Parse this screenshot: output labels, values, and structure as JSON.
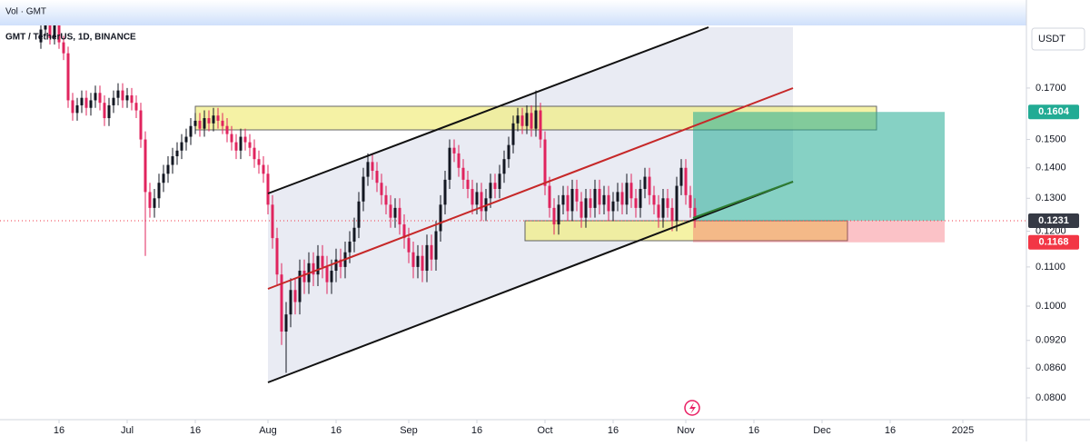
{
  "header": {
    "title": "Vol · GMT"
  },
  "chart_data": {
    "type": "candlestick",
    "title": "GMT / TetherUS, 1D, BINANCE",
    "currency": "USDT",
    "up_color": "#131722",
    "down_color": "#e0245e",
    "log_scale": true,
    "ylim": [
      0.0762,
      0.1971
    ],
    "yticks": [
      {
        "value": 0.08,
        "label": "0.0800"
      },
      {
        "value": 0.086,
        "label": "0.0860"
      },
      {
        "value": 0.092,
        "label": "0.0920"
      },
      {
        "value": 0.1,
        "label": "0.1000"
      },
      {
        "value": 0.11,
        "label": "0.1100"
      },
      {
        "value": 0.12,
        "label": "0.1200"
      },
      {
        "value": 0.13,
        "label": "0.1300"
      },
      {
        "value": 0.14,
        "label": "0.1400"
      },
      {
        "value": 0.15,
        "label": "0.1500"
      },
      {
        "value": 0.17,
        "label": "0.1700"
      }
    ],
    "xticks": [
      {
        "value": 4,
        "label": "16"
      },
      {
        "value": 19,
        "label": "Jul"
      },
      {
        "value": 34,
        "label": "16"
      },
      {
        "value": 50,
        "label": "Aug"
      },
      {
        "value": 65,
        "label": "16"
      },
      {
        "value": 81,
        "label": "Sep"
      },
      {
        "value": 96,
        "label": "16"
      },
      {
        "value": 111,
        "label": "Oct"
      },
      {
        "value": 126,
        "label": "16"
      },
      {
        "value": 142,
        "label": "Nov"
      },
      {
        "value": 157,
        "label": "16"
      },
      {
        "value": 172,
        "label": "Dec"
      },
      {
        "value": 187,
        "label": "16"
      },
      {
        "value": 203,
        "label": "2025"
      }
    ],
    "price_labels": [
      {
        "value": 0.1604,
        "label": "0.1604",
        "color": "#22ab94"
      },
      {
        "value": 0.1231,
        "label": "0.1231",
        "color": "#363a45"
      },
      {
        "value": 0.1168,
        "label": "0.1168",
        "color": "#f23645"
      }
    ],
    "open": [
      0.19,
      0.196,
      0.2,
      0.192,
      0.198,
      0.19,
      0.185,
      0.165,
      0.16,
      0.163,
      0.166,
      0.162,
      0.165,
      0.168,
      0.164,
      0.158,
      0.163,
      0.166,
      0.169,
      0.165,
      0.167,
      0.164,
      0.161,
      0.15,
      0.132,
      0.127,
      0.13,
      0.135,
      0.138,
      0.141,
      0.144,
      0.146,
      0.149,
      0.151,
      0.155,
      0.157,
      0.154,
      0.158,
      0.156,
      0.159,
      0.157,
      0.155,
      0.152,
      0.149,
      0.146,
      0.151,
      0.149,
      0.147,
      0.143,
      0.141,
      0.138,
      0.128,
      0.118,
      0.108,
      0.094,
      0.098,
      0.104,
      0.101,
      0.109,
      0.106,
      0.111,
      0.108,
      0.113,
      0.11,
      0.106,
      0.109,
      0.112,
      0.11,
      0.114,
      0.117,
      0.121,
      0.129,
      0.137,
      0.142,
      0.139,
      0.135,
      0.131,
      0.128,
      0.124,
      0.127,
      0.122,
      0.118,
      0.114,
      0.11,
      0.113,
      0.109,
      0.116,
      0.112,
      0.12,
      0.128,
      0.136,
      0.147,
      0.145,
      0.14,
      0.136,
      0.133,
      0.128,
      0.132,
      0.126,
      0.13,
      0.135,
      0.133,
      0.138,
      0.143,
      0.148,
      0.156,
      0.159,
      0.155,
      0.16,
      0.154,
      0.161,
      0.15,
      0.134,
      0.127,
      0.122,
      0.128,
      0.131,
      0.126,
      0.133,
      0.129,
      0.124,
      0.13,
      0.127,
      0.133,
      0.128,
      0.131,
      0.126,
      0.129,
      0.132,
      0.128,
      0.135,
      0.13,
      0.127,
      0.133,
      0.137,
      0.131,
      0.128,
      0.124,
      0.13,
      0.127,
      0.123,
      0.134,
      0.14,
      0.131,
      0.127
    ],
    "high": [
      0.199,
      0.203,
      0.203,
      0.201,
      0.201,
      0.193,
      0.188,
      0.168,
      0.166,
      0.169,
      0.169,
      0.168,
      0.171,
      0.171,
      0.167,
      0.166,
      0.169,
      0.172,
      0.172,
      0.17,
      0.17,
      0.167,
      0.164,
      0.153,
      0.135,
      0.133,
      0.138,
      0.141,
      0.144,
      0.147,
      0.149,
      0.152,
      0.154,
      0.158,
      0.16,
      0.16,
      0.161,
      0.161,
      0.162,
      0.162,
      0.16,
      0.158,
      0.155,
      0.152,
      0.154,
      0.154,
      0.152,
      0.15,
      0.146,
      0.144,
      0.141,
      0.131,
      0.121,
      0.111,
      0.101,
      0.107,
      0.107,
      0.112,
      0.112,
      0.114,
      0.114,
      0.116,
      0.116,
      0.113,
      0.112,
      0.115,
      0.115,
      0.117,
      0.12,
      0.124,
      0.132,
      0.14,
      0.145,
      0.145,
      0.142,
      0.138,
      0.134,
      0.131,
      0.13,
      0.13,
      0.125,
      0.121,
      0.117,
      0.116,
      0.116,
      0.119,
      0.119,
      0.123,
      0.131,
      0.139,
      0.15,
      0.15,
      0.148,
      0.143,
      0.139,
      0.136,
      0.135,
      0.135,
      0.133,
      0.138,
      0.138,
      0.141,
      0.146,
      0.151,
      0.159,
      0.162,
      0.162,
      0.163,
      0.163,
      0.169,
      0.164,
      0.153,
      0.137,
      0.13,
      0.131,
      0.134,
      0.134,
      0.136,
      0.136,
      0.132,
      0.133,
      0.133,
      0.136,
      0.136,
      0.134,
      0.134,
      0.132,
      0.135,
      0.135,
      0.138,
      0.138,
      0.133,
      0.136,
      0.14,
      0.14,
      0.134,
      0.131,
      0.133,
      0.133,
      0.13,
      0.137,
      0.143,
      0.143,
      0.134,
      0.13
    ],
    "low": [
      0.187,
      0.193,
      0.189,
      0.189,
      0.187,
      0.182,
      0.162,
      0.157,
      0.157,
      0.16,
      0.159,
      0.159,
      0.162,
      0.161,
      0.155,
      0.155,
      0.16,
      0.163,
      0.162,
      0.162,
      0.161,
      0.158,
      0.147,
      0.113,
      0.124,
      0.124,
      0.127,
      0.132,
      0.135,
      0.138,
      0.141,
      0.143,
      0.146,
      0.148,
      0.152,
      0.151,
      0.151,
      0.153,
      0.153,
      0.154,
      0.152,
      0.149,
      0.146,
      0.143,
      0.143,
      0.146,
      0.144,
      0.14,
      0.138,
      0.135,
      0.125,
      0.115,
      0.105,
      0.091,
      0.085,
      0.095,
      0.098,
      0.098,
      0.103,
      0.103,
      0.105,
      0.105,
      0.107,
      0.103,
      0.103,
      0.106,
      0.107,
      0.107,
      0.111,
      0.114,
      0.118,
      0.126,
      0.134,
      0.136,
      0.132,
      0.128,
      0.125,
      0.121,
      0.121,
      0.119,
      0.115,
      0.111,
      0.107,
      0.107,
      0.106,
      0.106,
      0.109,
      0.109,
      0.117,
      0.125,
      0.133,
      0.142,
      0.137,
      0.133,
      0.13,
      0.125,
      0.125,
      0.123,
      0.123,
      0.127,
      0.13,
      0.13,
      0.135,
      0.14,
      0.145,
      0.153,
      0.152,
      0.152,
      0.151,
      0.151,
      0.147,
      0.131,
      0.124,
      0.119,
      0.119,
      0.125,
      0.123,
      0.123,
      0.126,
      0.121,
      0.121,
      0.124,
      0.124,
      0.125,
      0.125,
      0.123,
      0.123,
      0.126,
      0.125,
      0.125,
      0.127,
      0.124,
      0.124,
      0.13,
      0.128,
      0.125,
      0.121,
      0.121,
      0.124,
      0.12,
      0.12,
      0.131,
      0.128,
      0.124,
      0.121
    ],
    "close": [
      0.196,
      0.2,
      0.192,
      0.198,
      0.19,
      0.185,
      0.165,
      0.16,
      0.163,
      0.166,
      0.162,
      0.165,
      0.168,
      0.164,
      0.158,
      0.163,
      0.166,
      0.169,
      0.165,
      0.167,
      0.164,
      0.161,
      0.15,
      0.132,
      0.127,
      0.13,
      0.135,
      0.138,
      0.141,
      0.144,
      0.146,
      0.149,
      0.151,
      0.155,
      0.157,
      0.154,
      0.158,
      0.156,
      0.159,
      0.157,
      0.155,
      0.152,
      0.149,
      0.146,
      0.151,
      0.149,
      0.147,
      0.143,
      0.141,
      0.138,
      0.128,
      0.118,
      0.108,
      0.094,
      0.098,
      0.104,
      0.101,
      0.109,
      0.106,
      0.111,
      0.108,
      0.113,
      0.11,
      0.106,
      0.109,
      0.112,
      0.11,
      0.114,
      0.117,
      0.121,
      0.129,
      0.137,
      0.142,
      0.139,
      0.135,
      0.131,
      0.128,
      0.124,
      0.127,
      0.122,
      0.118,
      0.114,
      0.11,
      0.113,
      0.109,
      0.116,
      0.112,
      0.12,
      0.128,
      0.136,
      0.147,
      0.145,
      0.14,
      0.136,
      0.133,
      0.128,
      0.132,
      0.126,
      0.13,
      0.135,
      0.133,
      0.138,
      0.143,
      0.148,
      0.156,
      0.159,
      0.155,
      0.16,
      0.154,
      0.161,
      0.15,
      0.134,
      0.127,
      0.122,
      0.128,
      0.131,
      0.126,
      0.133,
      0.129,
      0.124,
      0.13,
      0.127,
      0.133,
      0.128,
      0.131,
      0.126,
      0.129,
      0.132,
      0.128,
      0.135,
      0.13,
      0.127,
      0.133,
      0.137,
      0.131,
      0.128,
      0.124,
      0.13,
      0.127,
      0.123,
      0.134,
      0.14,
      0.131,
      0.127,
      0.1231
    ]
  }
}
